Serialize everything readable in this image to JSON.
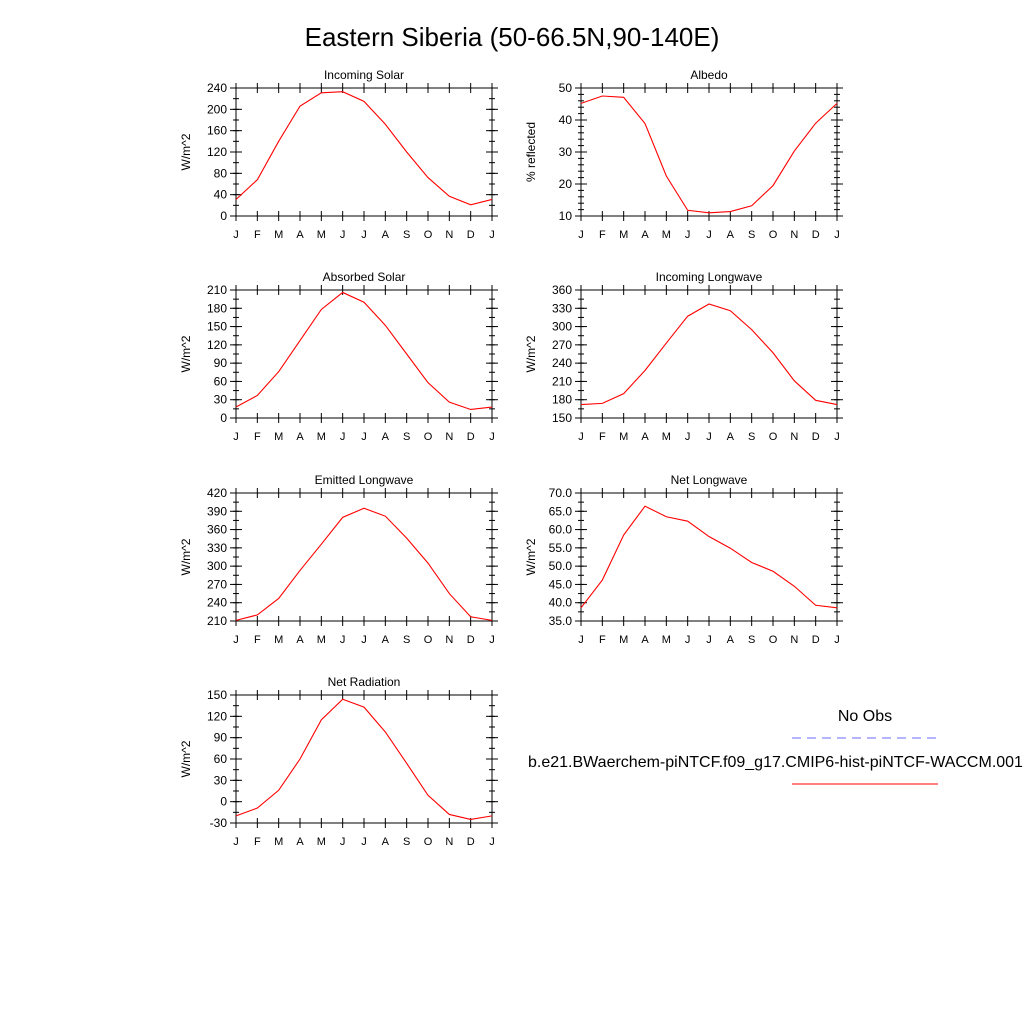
{
  "title": "Eastern Siberia (50-66.5N,90-140E)",
  "months": [
    "J",
    "F",
    "M",
    "A",
    "M",
    "J",
    "J",
    "A",
    "S",
    "O",
    "N",
    "D",
    "J"
  ],
  "legend": {
    "obs_label": "No Obs",
    "obs_color": "#6a6aff",
    "model_label": "b.e21.BWaerchem-piNTCF.f09_g17.CMIP6-hist-piNTCF-WACCM.001",
    "model_color": "#ff0000"
  },
  "chart_data": [
    {
      "type": "line",
      "title": "Incoming Solar",
      "ylabel": "W/m^2",
      "ylim": [
        0,
        240
      ],
      "yticks": [
        0,
        40,
        80,
        120,
        160,
        200,
        240
      ],
      "ytick_labels": [
        "0",
        "40",
        "80",
        "120",
        "160",
        "200",
        "240"
      ],
      "yminor_step": 20,
      "series": [
        {
          "values": [
            31,
            68,
            140,
            206,
            231,
            233,
            215,
            172,
            120,
            72,
            37,
            21,
            31
          ],
          "color": "#ff0000"
        }
      ]
    },
    {
      "type": "line",
      "title": "Albedo",
      "ylabel": "% reflected",
      "ylim": [
        10,
        50
      ],
      "yticks": [
        10,
        20,
        30,
        40,
        50
      ],
      "ytick_labels": [
        "10",
        "20",
        "30",
        "40",
        "50"
      ],
      "yminor_step": 2,
      "series": [
        {
          "values": [
            45.2,
            47.5,
            47.1,
            38.9,
            22.5,
            11.8,
            11.0,
            11.4,
            13.2,
            19.5,
            30.3,
            39.0,
            45.2
          ],
          "color": "#ff0000"
        }
      ]
    },
    {
      "type": "line",
      "title": "Absorbed Solar",
      "ylabel": "W/m^2",
      "ylim": [
        0,
        210
      ],
      "yticks": [
        0,
        30,
        60,
        90,
        120,
        150,
        180,
        210
      ],
      "ytick_labels": [
        "0",
        "30",
        "60",
        "90",
        "120",
        "150",
        "180",
        "210"
      ],
      "yminor_step": 15,
      "series": [
        {
          "values": [
            18,
            37,
            76,
            127,
            178,
            206,
            190,
            152,
            105,
            58,
            26,
            14,
            18
          ],
          "color": "#ff0000"
        }
      ]
    },
    {
      "type": "line",
      "title": "Incoming Longwave",
      "ylabel": "W/m^2",
      "ylim": [
        150,
        360
      ],
      "yticks": [
        150,
        180,
        210,
        240,
        270,
        300,
        330,
        360
      ],
      "ytick_labels": [
        "150",
        "180",
        "210",
        "240",
        "270",
        "300",
        "330",
        "360"
      ],
      "yminor_step": 15,
      "series": [
        {
          "values": [
            172,
            174,
            190,
            228,
            273,
            317,
            337,
            326,
            295,
            257,
            211,
            179,
            172
          ],
          "color": "#ff0000"
        }
      ]
    },
    {
      "type": "line",
      "title": "Emitted Longwave",
      "ylabel": "W/m^2",
      "ylim": [
        210,
        420
      ],
      "yticks": [
        210,
        240,
        270,
        300,
        330,
        360,
        390,
        420
      ],
      "ytick_labels": [
        "210",
        "240",
        "270",
        "300",
        "330",
        "360",
        "390",
        "420"
      ],
      "yminor_step": 15,
      "series": [
        {
          "values": [
            211,
            220,
            247,
            293,
            336,
            380,
            395,
            382,
            346,
            305,
            255,
            217,
            211
          ],
          "color": "#ff0000"
        }
      ]
    },
    {
      "type": "line",
      "title": "Net Longwave",
      "ylabel": "W/m^2",
      "ylim": [
        35,
        70
      ],
      "yticks": [
        35,
        40,
        45,
        50,
        55,
        60,
        65,
        70
      ],
      "ytick_labels": [
        "35.0",
        "40.0",
        "45.0",
        "50.0",
        "55.0",
        "60.0",
        "65.0",
        "70.0"
      ],
      "yminor_step": 2.5,
      "series": [
        {
          "values": [
            38.6,
            46.2,
            58.5,
            66.4,
            63.5,
            62.3,
            58.1,
            54.9,
            51.0,
            48.6,
            44.5,
            39.3,
            38.6
          ],
          "color": "#ff0000"
        }
      ]
    },
    {
      "type": "line",
      "title": "Net Radiation",
      "ylabel": "W/m^2",
      "ylim": [
        -30,
        150
      ],
      "yticks": [
        -30,
        0,
        30,
        60,
        90,
        120,
        150
      ],
      "ytick_labels": [
        "-30",
        "0",
        "30",
        "60",
        "90",
        "120",
        "150"
      ],
      "yminor_step": 15,
      "series": [
        {
          "values": [
            -20,
            -9,
            16,
            60,
            115,
            144,
            133,
            98,
            54,
            9,
            -18,
            -25,
            -20
          ],
          "color": "#ff0000"
        }
      ]
    }
  ]
}
